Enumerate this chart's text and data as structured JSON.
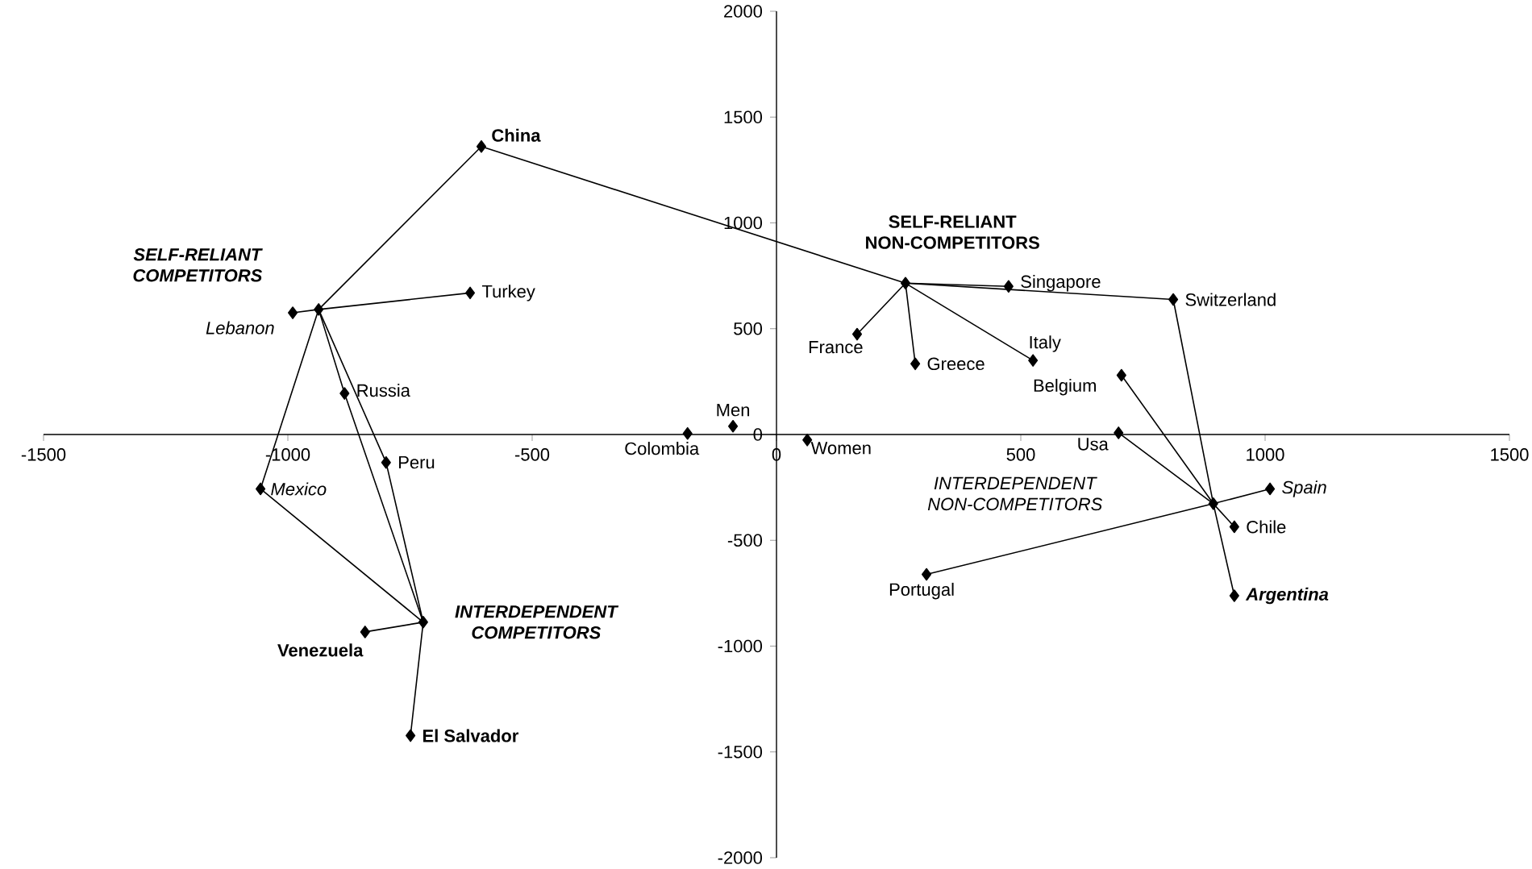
{
  "chart_data": {
    "type": "scatter",
    "marker": "diamond",
    "xlim": [
      -1500,
      1500
    ],
    "ylim": [
      -2000,
      2000
    ],
    "xticks": [
      -1500,
      -1000,
      -500,
      0,
      500,
      1000,
      1500
    ],
    "yticks": [
      -2000,
      -1500,
      -1000,
      -500,
      0,
      500,
      1000,
      1500,
      2000
    ],
    "series": [
      {
        "color": "#000000",
        "x": [
          -604,
          -990,
          -627,
          -884,
          -799,
          -1056,
          -842,
          -749,
          -182,
          -89,
          63,
          475,
          812,
          165,
          284,
          525,
          706,
          700,
          1010,
          937,
          937,
          307,
          -937,
          264,
          -723,
          894
        ],
        "values": [
          1361,
          575,
          669,
          194,
          -132,
          -257,
          -933,
          -1423,
          5,
          39,
          -26,
          700,
          638,
          474,
          334,
          350,
          280,
          8,
          -257,
          -436,
          -762,
          -661,
          591,
          715,
          -887,
          -327
        ]
      },
      {
        "type": "line",
        "marker": "none",
        "color": "#000000",
        "x": [
          -990,
          -937,
          -627
        ],
        "values": [
          575,
          591,
          669
        ]
      },
      {
        "type": "line",
        "marker": "none",
        "color": "#000000",
        "x": [
          -723,
          -1056,
          -937,
          -604,
          264,
          475
        ],
        "values": [
          -887,
          -257,
          591,
          1361,
          715,
          700
        ]
      },
      {
        "type": "line",
        "marker": "none",
        "color": "#000000",
        "x": [
          -937,
          -884,
          -723
        ],
        "values": [
          591,
          194,
          -887
        ]
      },
      {
        "type": "line",
        "marker": "none",
        "color": "#000000",
        "x": [
          -937,
          -799,
          -723
        ],
        "values": [
          591,
          -132,
          -887
        ]
      },
      {
        "type": "line",
        "marker": "none",
        "color": "#000000",
        "x": [
          -842,
          -723,
          -749
        ],
        "values": [
          -933,
          -887,
          -1423
        ]
      },
      {
        "type": "line",
        "marker": "none",
        "color": "#000000",
        "x": [
          165,
          264,
          284
        ],
        "values": [
          474,
          715,
          334
        ]
      },
      {
        "type": "line",
        "marker": "none",
        "color": "#000000",
        "x": [
          264,
          525
        ],
        "values": [
          715,
          350
        ]
      },
      {
        "type": "line",
        "marker": "none",
        "color": "#000000",
        "x": [
          264,
          812,
          894,
          706
        ],
        "values": [
          715,
          638,
          -327,
          280
        ]
      },
      {
        "type": "line",
        "marker": "none",
        "color": "#000000",
        "x": [
          700,
          894,
          937
        ],
        "values": [
          8,
          -327,
          -436
        ]
      },
      {
        "type": "line",
        "marker": "none",
        "color": "#000000",
        "x": [
          307,
          894,
          1010
        ],
        "values": [
          -661,
          -327,
          -257
        ]
      },
      {
        "type": "line",
        "marker": "none",
        "color": "#000000",
        "x": [
          894,
          937
        ],
        "values": [
          -327,
          -762
        ]
      }
    ],
    "annotations": [
      {
        "text": "China",
        "x": -604,
        "y": 1361
      },
      {
        "text": "Lebanon",
        "x": -990,
        "y": 575
      },
      {
        "text": "Turkey",
        "x": -627,
        "y": 669
      },
      {
        "text": "Russia",
        "x": -884,
        "y": 194
      },
      {
        "text": "Peru",
        "x": -799,
        "y": -132
      },
      {
        "text": "Mexico",
        "x": -1056,
        "y": -257
      },
      {
        "text": "Venezuela",
        "x": -842,
        "y": -933
      },
      {
        "text": "El Salvador",
        "x": -749,
        "y": -1423
      },
      {
        "text": "Colombia",
        "x": -182,
        "y": 5
      },
      {
        "text": "Men",
        "x": -89,
        "y": 39
      },
      {
        "text": "Women",
        "x": 63,
        "y": -26
      },
      {
        "text": "Singapore",
        "x": 475,
        "y": 700
      },
      {
        "text": "Switzerland",
        "x": 812,
        "y": 638
      },
      {
        "text": "France",
        "x": 165,
        "y": 474
      },
      {
        "text": "Greece",
        "x": 284,
        "y": 334
      },
      {
        "text": "Italy",
        "x": 525,
        "y": 350
      },
      {
        "text": "Belgium",
        "x": 706,
        "y": 280
      },
      {
        "text": "Usa",
        "x": 700,
        "y": 8
      },
      {
        "text": "Spain",
        "x": 1010,
        "y": -257
      },
      {
        "text": "Chile",
        "x": 937,
        "y": -436
      },
      {
        "text": "Argentina",
        "x": 937,
        "y": -762
      },
      {
        "text": "Portugal",
        "x": 307,
        "y": -661
      },
      "SELF-RELIANT COMPETITORS",
      "SELF-RELIANT NON-COMPETITORS",
      "INTERDEPENDENT COMPETITORS",
      "INTERDEPENDENT NON-COMPETITORS"
    ]
  }
}
